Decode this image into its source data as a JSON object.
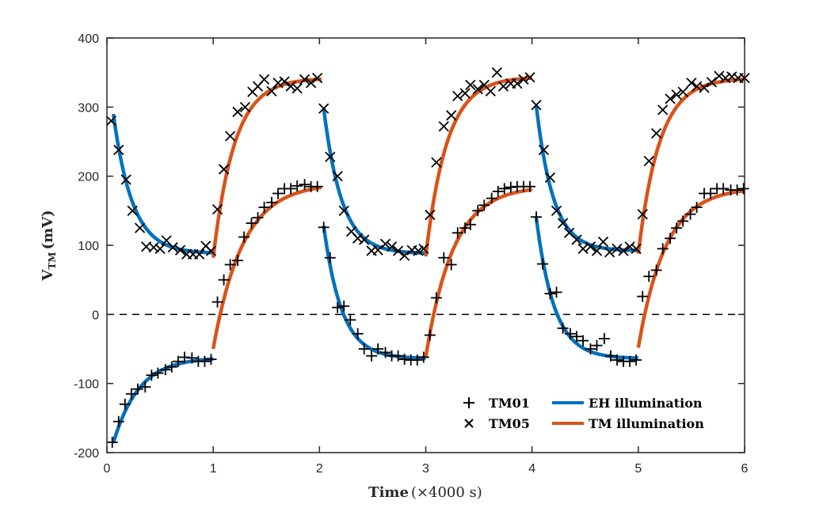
{
  "chart_data": {
    "type": "line",
    "title": "",
    "xlabel": "Time",
    "xlabel_unit": "(×4000 s)",
    "ylabel_main": "V",
    "ylabel_sub": "TM",
    "ylabel_unit": "(mV)",
    "xlim": [
      0,
      6
    ],
    "ylim": [
      -200,
      400
    ],
    "xticks": [
      "0",
      "1",
      "2",
      "3",
      "4",
      "5",
      "6"
    ],
    "yticks": [
      "-200",
      "-100",
      "0",
      "100",
      "200",
      "300",
      "400"
    ],
    "grid": false,
    "legend_position": "bottom-right",
    "reference_line": {
      "y": 0,
      "style": "dashed"
    },
    "colors": {
      "eh": "#0072BD",
      "tm": "#D95319",
      "marker": "#000000",
      "axis": "#262626"
    },
    "legend": [
      {
        "label": "TM01",
        "kind": "marker",
        "marker": "+"
      },
      {
        "label": "TM05",
        "kind": "marker",
        "marker": "x"
      },
      {
        "label": "EH illumination",
        "kind": "line",
        "color": "#0072BD"
      },
      {
        "label": "TM illumination",
        "kind": "line",
        "color": "#D95319"
      }
    ],
    "fit_segments": [
      {
        "series": "TM05",
        "illumination": "EH",
        "t_start": 0.06,
        "t_end": 1.0,
        "v_start": 290,
        "v_end": 88,
        "tau": 0.18
      },
      {
        "series": "TM05",
        "illumination": "TM",
        "t_start": 1.0,
        "t_end": 2.02,
        "v_start": 82,
        "v_end": 342,
        "tau": 0.2
      },
      {
        "series": "TM05",
        "illumination": "EH",
        "t_start": 2.04,
        "t_end": 3.0,
        "v_start": 298,
        "v_end": 88,
        "tau": 0.17
      },
      {
        "series": "TM05",
        "illumination": "TM",
        "t_start": 3.0,
        "t_end": 4.0,
        "v_start": 84,
        "v_end": 344,
        "tau": 0.2
      },
      {
        "series": "TM05",
        "illumination": "EH",
        "t_start": 4.04,
        "t_end": 5.0,
        "v_start": 302,
        "v_end": 92,
        "tau": 0.16
      },
      {
        "series": "TM05",
        "illumination": "TM",
        "t_start": 5.0,
        "t_end": 6.0,
        "v_start": 88,
        "v_end": 342,
        "tau": 0.2
      },
      {
        "series": "TM01",
        "illumination": "EH",
        "t_start": 0.06,
        "t_end": 1.0,
        "v_start": -186,
        "v_end": -62,
        "tau": 0.24
      },
      {
        "series": "TM01",
        "illumination": "TM",
        "t_start": 1.0,
        "t_end": 2.02,
        "v_start": -50,
        "v_end": 190,
        "tau": 0.28
      },
      {
        "series": "TM01",
        "illumination": "EH",
        "t_start": 2.04,
        "t_end": 3.0,
        "v_start": 128,
        "v_end": -64,
        "tau": 0.17
      },
      {
        "series": "TM01",
        "illumination": "TM",
        "t_start": 3.0,
        "t_end": 4.0,
        "v_start": -62,
        "v_end": 186,
        "tau": 0.26
      },
      {
        "series": "TM01",
        "illumination": "EH",
        "t_start": 4.04,
        "t_end": 5.0,
        "v_start": 140,
        "v_end": -64,
        "tau": 0.17
      },
      {
        "series": "TM01",
        "illumination": "TM",
        "t_start": 5.0,
        "t_end": 6.0,
        "v_start": -48,
        "v_end": 184,
        "tau": 0.26
      }
    ],
    "series": [
      {
        "name": "TM05",
        "marker": "x",
        "points": [
          [
            0.04,
            280
          ],
          [
            0.11,
            238
          ],
          [
            0.18,
            195
          ],
          [
            0.24,
            150
          ],
          [
            0.31,
            125
          ],
          [
            0.37,
            98
          ],
          [
            0.44,
            97
          ],
          [
            0.5,
            95
          ],
          [
            0.56,
            107
          ],
          [
            0.62,
            97
          ],
          [
            0.69,
            93
          ],
          [
            0.75,
            87
          ],
          [
            0.81,
            87
          ],
          [
            0.87,
            87
          ],
          [
            0.93,
            99
          ],
          [
            0.98,
            92
          ],
          [
            1.04,
            152
          ],
          [
            1.1,
            210
          ],
          [
            1.16,
            258
          ],
          [
            1.23,
            293
          ],
          [
            1.3,
            300
          ],
          [
            1.37,
            322
          ],
          [
            1.42,
            330
          ],
          [
            1.48,
            340
          ],
          [
            1.55,
            323
          ],
          [
            1.61,
            335
          ],
          [
            1.67,
            337
          ],
          [
            1.73,
            330
          ],
          [
            1.79,
            327
          ],
          [
            1.86,
            340
          ],
          [
            1.92,
            335
          ],
          [
            1.98,
            342
          ],
          [
            2.04,
            298
          ],
          [
            2.1,
            228
          ],
          [
            2.17,
            200
          ],
          [
            2.23,
            150
          ],
          [
            2.3,
            120
          ],
          [
            2.36,
            110
          ],
          [
            2.42,
            108
          ],
          [
            2.49,
            92
          ],
          [
            2.55,
            93
          ],
          [
            2.62,
            102
          ],
          [
            2.68,
            98
          ],
          [
            2.74,
            92
          ],
          [
            2.8,
            85
          ],
          [
            2.87,
            93
          ],
          [
            2.93,
            92
          ],
          [
            2.98,
            95
          ],
          [
            3.04,
            144
          ],
          [
            3.1,
            220
          ],
          [
            3.17,
            272
          ],
          [
            3.24,
            288
          ],
          [
            3.3,
            316
          ],
          [
            3.37,
            320
          ],
          [
            3.42,
            332
          ],
          [
            3.49,
            326
          ],
          [
            3.55,
            332
          ],
          [
            3.61,
            323
          ],
          [
            3.67,
            350
          ],
          [
            3.73,
            330
          ],
          [
            3.8,
            334
          ],
          [
            3.86,
            334
          ],
          [
            3.92,
            340
          ],
          [
            3.98,
            343
          ],
          [
            4.04,
            303
          ],
          [
            4.11,
            238
          ],
          [
            4.17,
            198
          ],
          [
            4.23,
            150
          ],
          [
            4.29,
            132
          ],
          [
            4.35,
            118
          ],
          [
            4.42,
            108
          ],
          [
            4.48,
            95
          ],
          [
            4.55,
            98
          ],
          [
            4.61,
            92
          ],
          [
            4.67,
            105
          ],
          [
            4.73,
            90
          ],
          [
            4.8,
            95
          ],
          [
            4.86,
            92
          ],
          [
            4.92,
            98
          ],
          [
            4.98,
            95
          ],
          [
            5.04,
            145
          ],
          [
            5.1,
            222
          ],
          [
            5.17,
            262
          ],
          [
            5.23,
            296
          ],
          [
            5.3,
            312
          ],
          [
            5.36,
            318
          ],
          [
            5.42,
            322
          ],
          [
            5.5,
            335
          ],
          [
            5.55,
            330
          ],
          [
            5.62,
            328
          ],
          [
            5.69,
            336
          ],
          [
            5.76,
            345
          ],
          [
            5.82,
            342
          ],
          [
            5.88,
            344
          ],
          [
            5.94,
            342
          ],
          [
            6.0,
            342
          ]
        ]
      },
      {
        "name": "TM01",
        "marker": "+",
        "points": [
          [
            0.05,
            -185
          ],
          [
            0.11,
            -155
          ],
          [
            0.17,
            -130
          ],
          [
            0.23,
            -115
          ],
          [
            0.29,
            -108
          ],
          [
            0.36,
            -105
          ],
          [
            0.42,
            -88
          ],
          [
            0.48,
            -85
          ],
          [
            0.55,
            -80
          ],
          [
            0.61,
            -76
          ],
          [
            0.67,
            -68
          ],
          [
            0.73,
            -62
          ],
          [
            0.8,
            -63
          ],
          [
            0.86,
            -68
          ],
          [
            0.92,
            -68
          ],
          [
            0.98,
            -65
          ],
          [
            1.04,
            18
          ],
          [
            1.1,
            50
          ],
          [
            1.16,
            72
          ],
          [
            1.23,
            78
          ],
          [
            1.29,
            112
          ],
          [
            1.36,
            132
          ],
          [
            1.42,
            140
          ],
          [
            1.48,
            155
          ],
          [
            1.55,
            162
          ],
          [
            1.61,
            175
          ],
          [
            1.67,
            182
          ],
          [
            1.73,
            182
          ],
          [
            1.79,
            186
          ],
          [
            1.86,
            188
          ],
          [
            1.92,
            185
          ],
          [
            1.98,
            185
          ],
          [
            2.04,
            126
          ],
          [
            2.1,
            82
          ],
          [
            2.17,
            10
          ],
          [
            2.23,
            12
          ],
          [
            2.29,
            -8
          ],
          [
            2.36,
            -28
          ],
          [
            2.42,
            -50
          ],
          [
            2.49,
            -60
          ],
          [
            2.55,
            -50
          ],
          [
            2.62,
            -55
          ],
          [
            2.68,
            -60
          ],
          [
            2.74,
            -60
          ],
          [
            2.8,
            -65
          ],
          [
            2.86,
            -66
          ],
          [
            2.92,
            -66
          ],
          [
            2.98,
            -62
          ],
          [
            3.04,
            -30
          ],
          [
            3.1,
            24
          ],
          [
            3.17,
            82
          ],
          [
            3.24,
            72
          ],
          [
            3.3,
            118
          ],
          [
            3.37,
            125
          ],
          [
            3.42,
            130
          ],
          [
            3.49,
            150
          ],
          [
            3.55,
            158
          ],
          [
            3.62,
            168
          ],
          [
            3.68,
            178
          ],
          [
            3.74,
            182
          ],
          [
            3.8,
            184
          ],
          [
            3.86,
            185
          ],
          [
            3.92,
            185
          ],
          [
            3.98,
            185
          ],
          [
            4.04,
            141
          ],
          [
            4.1,
            73
          ],
          [
            4.17,
            30
          ],
          [
            4.23,
            32
          ],
          [
            4.29,
            -20
          ],
          [
            4.36,
            -28
          ],
          [
            4.42,
            -32
          ],
          [
            4.48,
            -38
          ],
          [
            4.55,
            -50
          ],
          [
            4.61,
            -45
          ],
          [
            4.68,
            -35
          ],
          [
            4.74,
            -60
          ],
          [
            4.8,
            -66
          ],
          [
            4.86,
            -68
          ],
          [
            4.92,
            -68
          ],
          [
            4.98,
            -66
          ],
          [
            5.04,
            26
          ],
          [
            5.1,
            55
          ],
          [
            5.17,
            64
          ],
          [
            5.23,
            95
          ],
          [
            5.3,
            110
          ],
          [
            5.36,
            125
          ],
          [
            5.42,
            135
          ],
          [
            5.49,
            145
          ],
          [
            5.55,
            155
          ],
          [
            5.62,
            175
          ],
          [
            5.68,
            175
          ],
          [
            5.74,
            182
          ],
          [
            5.8,
            182
          ],
          [
            5.87,
            180
          ],
          [
            5.93,
            180
          ],
          [
            5.99,
            182
          ]
        ]
      }
    ]
  }
}
